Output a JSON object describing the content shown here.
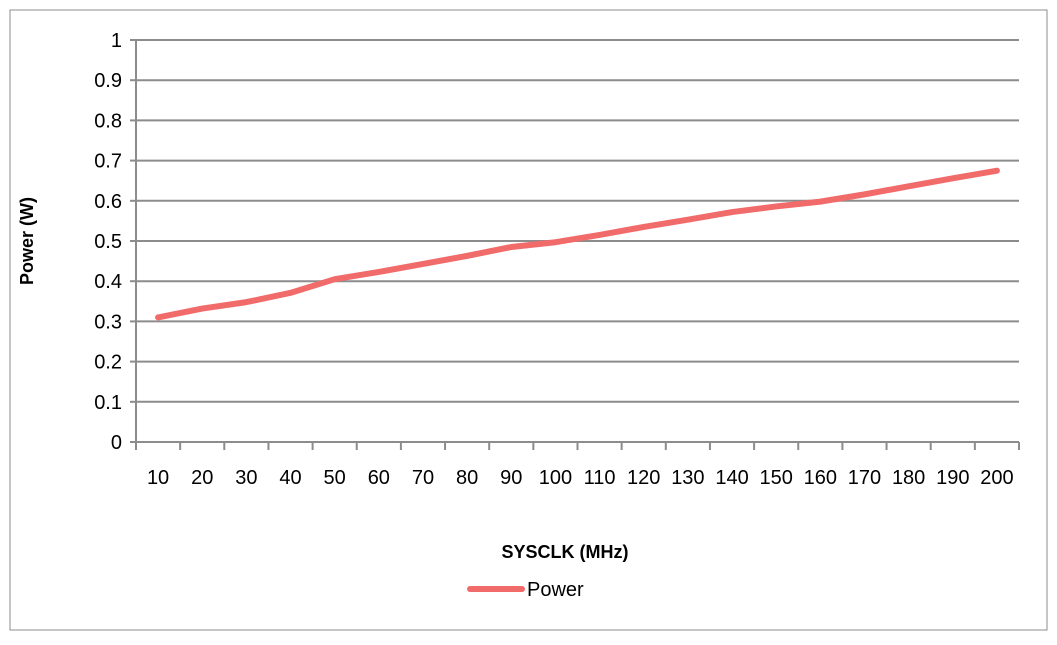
{
  "chart_data": {
    "type": "line",
    "title": "",
    "xlabel": "SYSCLK (MHz)",
    "ylabel": "Power (W)",
    "categories": [
      "10",
      "20",
      "30",
      "40",
      "50",
      "60",
      "70",
      "80",
      "90",
      "100",
      "110",
      "120",
      "130",
      "140",
      "150",
      "160",
      "170",
      "180",
      "190",
      "200"
    ],
    "series": [
      {
        "name": "Power",
        "color": "#f26b6b",
        "values": [
          0.31,
          0.332,
          0.348,
          0.371,
          0.405,
          0.423,
          0.443,
          0.463,
          0.485,
          0.497,
          0.515,
          0.535,
          0.553,
          0.572,
          0.586,
          0.598,
          0.616,
          0.636,
          0.656,
          0.675
        ]
      }
    ],
    "yticks": [
      "0",
      "0.1",
      "0.2",
      "0.3",
      "0.4",
      "0.5",
      "0.6",
      "0.7",
      "0.8",
      "0.9",
      "1"
    ],
    "ylim": [
      0,
      1
    ],
    "grid": true,
    "legend_position": "bottom"
  }
}
